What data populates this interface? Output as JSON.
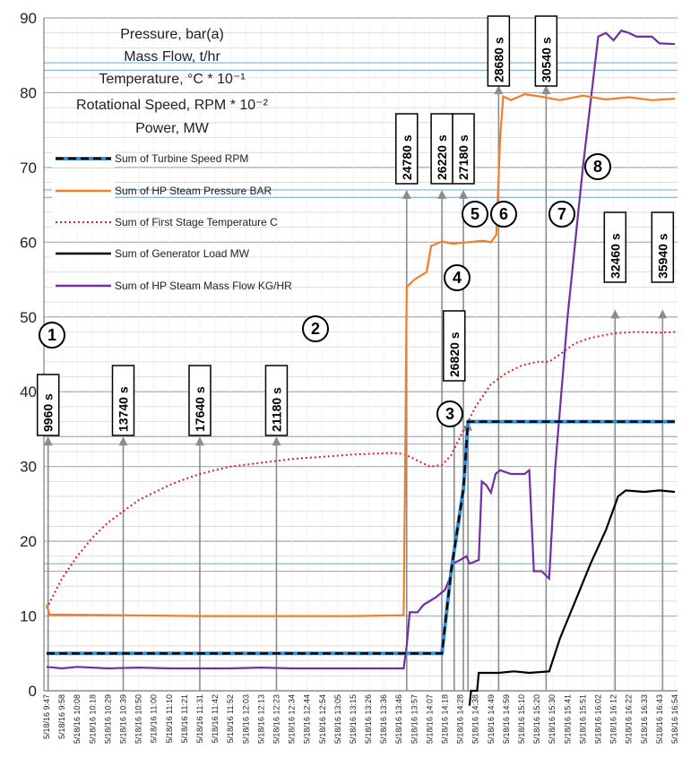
{
  "chart_data": {
    "type": "line",
    "title": "",
    "ylim": [
      0,
      90
    ],
    "yticks": [
      0,
      10,
      20,
      30,
      40,
      50,
      60,
      70,
      80,
      90
    ],
    "units_text": [
      "Pressure, bar(a)",
      "Mass Flow, t/hr",
      "Temperature, °C * 10⁻¹",
      "Rotational Speed, RPM * 10⁻²",
      "Power, MW"
    ],
    "grid": true,
    "legend_position": "top-left",
    "x_categories": [
      "5/18/16 9:47",
      "5/18/16 9:58",
      "5/18/16 10:08",
      "5/18/16 10:18",
      "5/18/16 10:29",
      "5/18/16 10:39",
      "5/18/16 10:50",
      "5/18/16 11:00",
      "5/18/16 11:10",
      "5/18/16 11:21",
      "5/18/16 11:31",
      "5/18/16 11:42",
      "5/18/16 11:52",
      "5/18/16 12:03",
      "5/18/16 12:13",
      "5/18/16 12:23",
      "5/18/16 12:34",
      "5/18/16 12:44",
      "5/18/16 12:54",
      "5/18/16 13:05",
      "5/18/16 13:15",
      "5/18/16 13:26",
      "5/18/16 13:36",
      "5/18/16 13:46",
      "5/18/16 13:57",
      "5/18/16 14:07",
      "5/18/16 14:18",
      "5/18/16 14:28",
      "5/18/16 14:38",
      "5/18/16 14:49",
      "5/18/16 14:59",
      "5/18/16 15:10",
      "5/18/16 15:20",
      "5/18/16 15:30",
      "5/18/16 15:41",
      "5/18/16 15:51",
      "5/18/16 16:02",
      "5/18/16 16:12",
      "5/18/16 16:22",
      "5/18/16 16:33",
      "5/18/16 16:43",
      "5/18/16 16:54"
    ],
    "series": [
      {
        "name": "Sum of Turbine Speed RPM",
        "color": "#2f8fd8",
        "style": "dashed-black-over-blue",
        "points": [
          [
            0,
            5
          ],
          [
            24.2,
            5
          ],
          [
            25.8,
            5
          ],
          [
            26.4,
            16
          ],
          [
            27.2,
            27
          ],
          [
            27.5,
            36
          ],
          [
            33,
            36
          ],
          [
            41,
            36
          ]
        ]
      },
      {
        "name": "Sum of HP Steam Pressure BAR",
        "color": "#f07f28",
        "style": "solid",
        "points": [
          [
            0,
            11.5
          ],
          [
            0.2,
            10.2
          ],
          [
            5,
            10.1
          ],
          [
            10,
            10.0
          ],
          [
            15,
            10.0
          ],
          [
            20,
            10.0
          ],
          [
            23.3,
            10.1
          ],
          [
            23.4,
            30
          ],
          [
            23.5,
            54
          ],
          [
            24,
            55
          ],
          [
            24.8,
            56
          ],
          [
            25.1,
            59.5
          ],
          [
            25.8,
            60.1
          ],
          [
            26.5,
            59.8
          ],
          [
            27.5,
            60
          ],
          [
            28.5,
            60.2
          ],
          [
            29,
            60
          ],
          [
            29.35,
            61
          ],
          [
            29.6,
            74
          ],
          [
            29.8,
            79.5
          ],
          [
            30.3,
            79
          ],
          [
            31.2,
            79.8
          ],
          [
            32.2,
            79.5
          ],
          [
            33.5,
            79
          ],
          [
            35,
            79.6
          ],
          [
            36.5,
            79.1
          ],
          [
            38,
            79.4
          ],
          [
            39.5,
            79
          ],
          [
            41,
            79.2
          ]
        ]
      },
      {
        "name": "Sum of First Stage Temperature C",
        "color": "#e02020",
        "style": "dotted",
        "points": [
          [
            0,
            11
          ],
          [
            1,
            15
          ],
          [
            2,
            18
          ],
          [
            3,
            20.5
          ],
          [
            4,
            22.5
          ],
          [
            5,
            24
          ],
          [
            6,
            25.5
          ],
          [
            7,
            26.5
          ],
          [
            8,
            27.5
          ],
          [
            9,
            28.3
          ],
          [
            10,
            29
          ],
          [
            11,
            29.5
          ],
          [
            12,
            30
          ],
          [
            14,
            30.5
          ],
          [
            16,
            31
          ],
          [
            18,
            31.3
          ],
          [
            20,
            31.6
          ],
          [
            22.5,
            31.8
          ],
          [
            23.3,
            31.7
          ],
          [
            24,
            31
          ],
          [
            25,
            30
          ],
          [
            25.8,
            30.2
          ],
          [
            26.4,
            31.5
          ],
          [
            27,
            34
          ],
          [
            28,
            38
          ],
          [
            29,
            41
          ],
          [
            30,
            42.5
          ],
          [
            31,
            43.5
          ],
          [
            32,
            44
          ],
          [
            32.8,
            44
          ],
          [
            33.5,
            45
          ],
          [
            34.5,
            46.5
          ],
          [
            35.5,
            47.2
          ],
          [
            37,
            47.8
          ],
          [
            38.5,
            48
          ],
          [
            40,
            47.9
          ],
          [
            41,
            48
          ]
        ]
      },
      {
        "name": "Sum of Generator Load MW",
        "color": "#000000",
        "style": "solid",
        "points": [
          [
            27.6,
            -2
          ],
          [
            27.7,
            0
          ],
          [
            28.1,
            0
          ],
          [
            28.2,
            2.4
          ],
          [
            29.5,
            2.4
          ],
          [
            30.5,
            2.6
          ],
          [
            31.5,
            2.4
          ],
          [
            32.8,
            2.6
          ],
          [
            33.5,
            7
          ],
          [
            34.5,
            12
          ],
          [
            35.5,
            17
          ],
          [
            36.5,
            21.5
          ],
          [
            37.3,
            26
          ],
          [
            37.8,
            26.8
          ],
          [
            39,
            26.6
          ],
          [
            40,
            26.8
          ],
          [
            41,
            26.6
          ]
        ]
      },
      {
        "name": "Sum of HP Steam Mass Flow KG/HR",
        "color": "#7030a0",
        "style": "solid",
        "points": [
          [
            0,
            3.2
          ],
          [
            1,
            3.0
          ],
          [
            2,
            3.2
          ],
          [
            4,
            3.0
          ],
          [
            6,
            3.1
          ],
          [
            8,
            3.0
          ],
          [
            10,
            3.0
          ],
          [
            12,
            3.0
          ],
          [
            14,
            3.1
          ],
          [
            16,
            3.0
          ],
          [
            18,
            3.0
          ],
          [
            20,
            3.0
          ],
          [
            22,
            3.0
          ],
          [
            23.3,
            3.0
          ],
          [
            23.5,
            6
          ],
          [
            23.7,
            10.5
          ],
          [
            24.2,
            10.5
          ],
          [
            24.6,
            11.5
          ],
          [
            25.4,
            12.5
          ],
          [
            26,
            13.5
          ],
          [
            26.3,
            15
          ],
          [
            26.5,
            17
          ],
          [
            27,
            17.5
          ],
          [
            27.4,
            18
          ],
          [
            27.6,
            17
          ],
          [
            28.2,
            17.5
          ],
          [
            28.4,
            28
          ],
          [
            28.7,
            27.5
          ],
          [
            29.0,
            26.5
          ],
          [
            29.3,
            29
          ],
          [
            29.6,
            29.5
          ],
          [
            30.3,
            29
          ],
          [
            31.2,
            29
          ],
          [
            31.5,
            29.5
          ],
          [
            31.8,
            16
          ],
          [
            32.3,
            16
          ],
          [
            32.8,
            15
          ],
          [
            33.2,
            30
          ],
          [
            34,
            50
          ],
          [
            35,
            70
          ],
          [
            36,
            87.5
          ],
          [
            36.5,
            88
          ],
          [
            37,
            87
          ],
          [
            37.5,
            88.3
          ],
          [
            38,
            88
          ],
          [
            38.5,
            87.5
          ],
          [
            39.5,
            87.5
          ],
          [
            40,
            86.6
          ],
          [
            41,
            86.5
          ]
        ]
      }
    ],
    "legend": [
      "Sum of Turbine Speed RPM",
      "Sum of HP Steam Pressure BAR",
      "Sum of First Stage Temperature C",
      "Sum of Generator Load MW",
      "Sum of HP Steam Mass Flow KG/HR"
    ],
    "events": [
      {
        "label": "9960 s",
        "xi": 0.1,
        "y_arrow": 34,
        "number": "1"
      },
      {
        "label": "13740 s",
        "xi": 5,
        "y_arrow": 34,
        "number": ""
      },
      {
        "label": "17640 s",
        "xi": 10,
        "y_arrow": 34,
        "number": ""
      },
      {
        "label": "21180 s",
        "xi": 15,
        "y_arrow": 34,
        "number": "2"
      },
      {
        "label": "24780 s",
        "xi": 23.5,
        "y_arrow": 67,
        "number": ""
      },
      {
        "label": "26220 s",
        "xi": 25.8,
        "y_arrow": 67,
        "number": ""
      },
      {
        "label": "26820 s",
        "xi": 26.6,
        "y_arrow": 38,
        "number": "4"
      },
      {
        "label": "27180 s",
        "xi": 27.2,
        "y_arrow": 67,
        "number": "5"
      },
      {
        "label": "",
        "xi": 27.5,
        "y_arrow": 36,
        "number": "3"
      },
      {
        "label": "28680 s",
        "xi": 29.5,
        "y_arrow": 81,
        "number": "6"
      },
      {
        "label": "30540 s",
        "xi": 32.6,
        "y_arrow": 81,
        "number": "7"
      },
      {
        "label": "32460 s",
        "xi": 37.1,
        "y_arrow": 51,
        "number": "8"
      },
      {
        "label": "35940 s",
        "xi": 40.2,
        "y_arrow": 51,
        "number": ""
      }
    ],
    "blue_ref_lines": [
      16,
      17,
      33,
      34,
      66,
      67,
      83,
      84
    ]
  }
}
